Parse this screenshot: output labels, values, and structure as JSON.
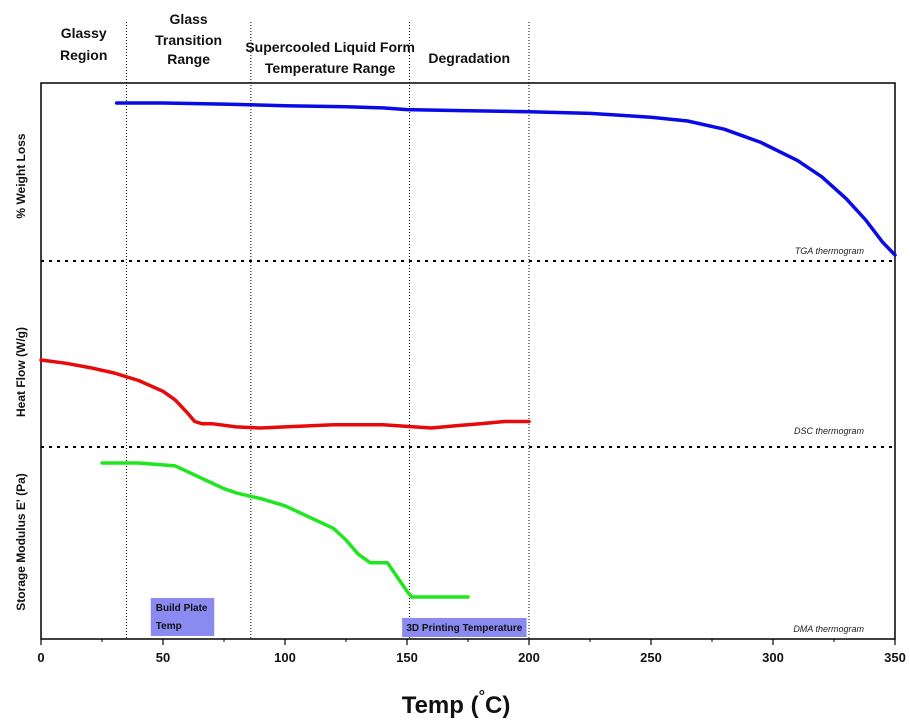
{
  "chart_data": {
    "type": "line",
    "xlabel_text": "Temp (",
    "xlabel_unit": "C)",
    "xlabel_degree": "°",
    "xlim": [
      0,
      350
    ],
    "x_ticks": [
      0,
      50,
      100,
      150,
      200,
      250,
      300,
      350
    ],
    "y_axis_labels": [
      "% Weight Loss",
      "Heat Flow (W/g)",
      "Storage Modulus E' (Pa)"
    ],
    "regions": [
      {
        "label_lines": [
          "Glassy",
          "Region"
        ]
      },
      {
        "label_lines": [
          "Glass",
          "Transition",
          "Range"
        ]
      },
      {
        "label_lines": [
          "Supercooled Liquid Form",
          "Temperature Range"
        ]
      },
      {
        "label_lines": [
          "Degradation"
        ]
      }
    ],
    "region_boundaries": [
      35,
      86,
      151,
      200
    ],
    "panel_separator_labels": [
      "TGA thermogram",
      "DSC thermogram",
      "DMA thermogram"
    ],
    "annotation_boxes": [
      {
        "lines": [
          "Build Plate",
          "Temp"
        ],
        "x_range": [
          45,
          71
        ],
        "color": "#8a8af0"
      },
      {
        "lines": [
          "3D Printing Temperature"
        ],
        "x_range": [
          148,
          199
        ],
        "color": "#8a8af0"
      }
    ],
    "series": [
      {
        "name": "TGA",
        "color": "#0a0ae6",
        "x": [
          31,
          50,
          75,
          100,
          125,
          140,
          150,
          175,
          200,
          225,
          250,
          265,
          280,
          295,
          310,
          320,
          330,
          338,
          345,
          350
        ],
        "y": [
          100,
          100,
          99.8,
          99.5,
          99.3,
          99.1,
          98.8,
          98.6,
          98.4,
          98.1,
          97.4,
          96.7,
          95.2,
          92.8,
          89.5,
          86.5,
          82.5,
          78.6,
          74.5,
          72.2
        ]
      },
      {
        "name": "DSC",
        "color": "#e60a0a",
        "x": [
          0,
          10,
          20,
          30,
          40,
          50,
          55,
          60,
          63,
          66,
          70,
          80,
          90,
          100,
          120,
          140,
          160,
          170,
          180,
          190,
          200
        ],
        "y": [
          0.1,
          -0.2,
          -0.6,
          -1.1,
          -1.8,
          -2.8,
          -3.6,
          -4.8,
          -5.6,
          -5.8,
          -5.8,
          -6.1,
          -6.2,
          -6.1,
          -5.9,
          -5.9,
          -6.2,
          -6.0,
          -5.8,
          -5.6,
          -5.6
        ]
      },
      {
        "name": "DMA",
        "color": "#20e620",
        "x": [
          25,
          40,
          55,
          60,
          65,
          70,
          75,
          80,
          90,
          100,
          110,
          120,
          125,
          130,
          135,
          140,
          142,
          146,
          150,
          152,
          160,
          175
        ],
        "y": [
          9.9,
          9.9,
          9.8,
          9.6,
          9.4,
          9.2,
          9.0,
          8.85,
          8.65,
          8.4,
          8.0,
          7.6,
          7.2,
          6.7,
          6.4,
          6.4,
          6.4,
          5.9,
          5.4,
          5.2,
          5.2,
          5.2
        ]
      }
    ]
  }
}
